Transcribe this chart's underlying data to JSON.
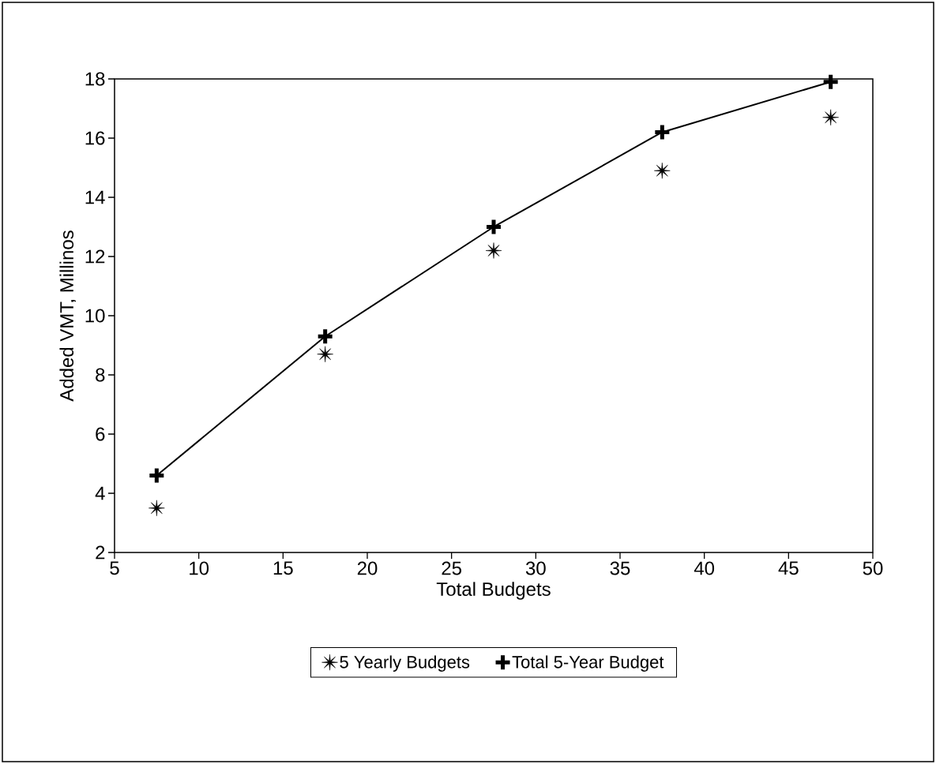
{
  "chart_data": {
    "type": "scatter",
    "xlabel": "Total Budgets",
    "ylabel": "Added VMT, Millinos",
    "xlim": [
      5,
      50
    ],
    "xticks": [
      5,
      10,
      15,
      20,
      25,
      30,
      35,
      40,
      45,
      50
    ],
    "ylim": [
      2,
      18
    ],
    "yticks": [
      2,
      4,
      6,
      8,
      10,
      12,
      14,
      16,
      18
    ],
    "x": [
      7.5,
      17.5,
      27.5,
      37.5,
      47.5
    ],
    "series": [
      {
        "name": "5 Yearly Budgets",
        "color": "#000000",
        "marker": "star",
        "values": [
          3.5,
          8.7,
          12.2,
          14.9,
          16.7
        ]
      },
      {
        "name": "Total 5-Year Budget",
        "type": "line",
        "color": "#000000",
        "marker": "cross",
        "line_style": "solid",
        "values": [
          4.6,
          9.3,
          13.0,
          16.2,
          17.9
        ]
      }
    ],
    "legend": "bottom",
    "grid": false
  }
}
